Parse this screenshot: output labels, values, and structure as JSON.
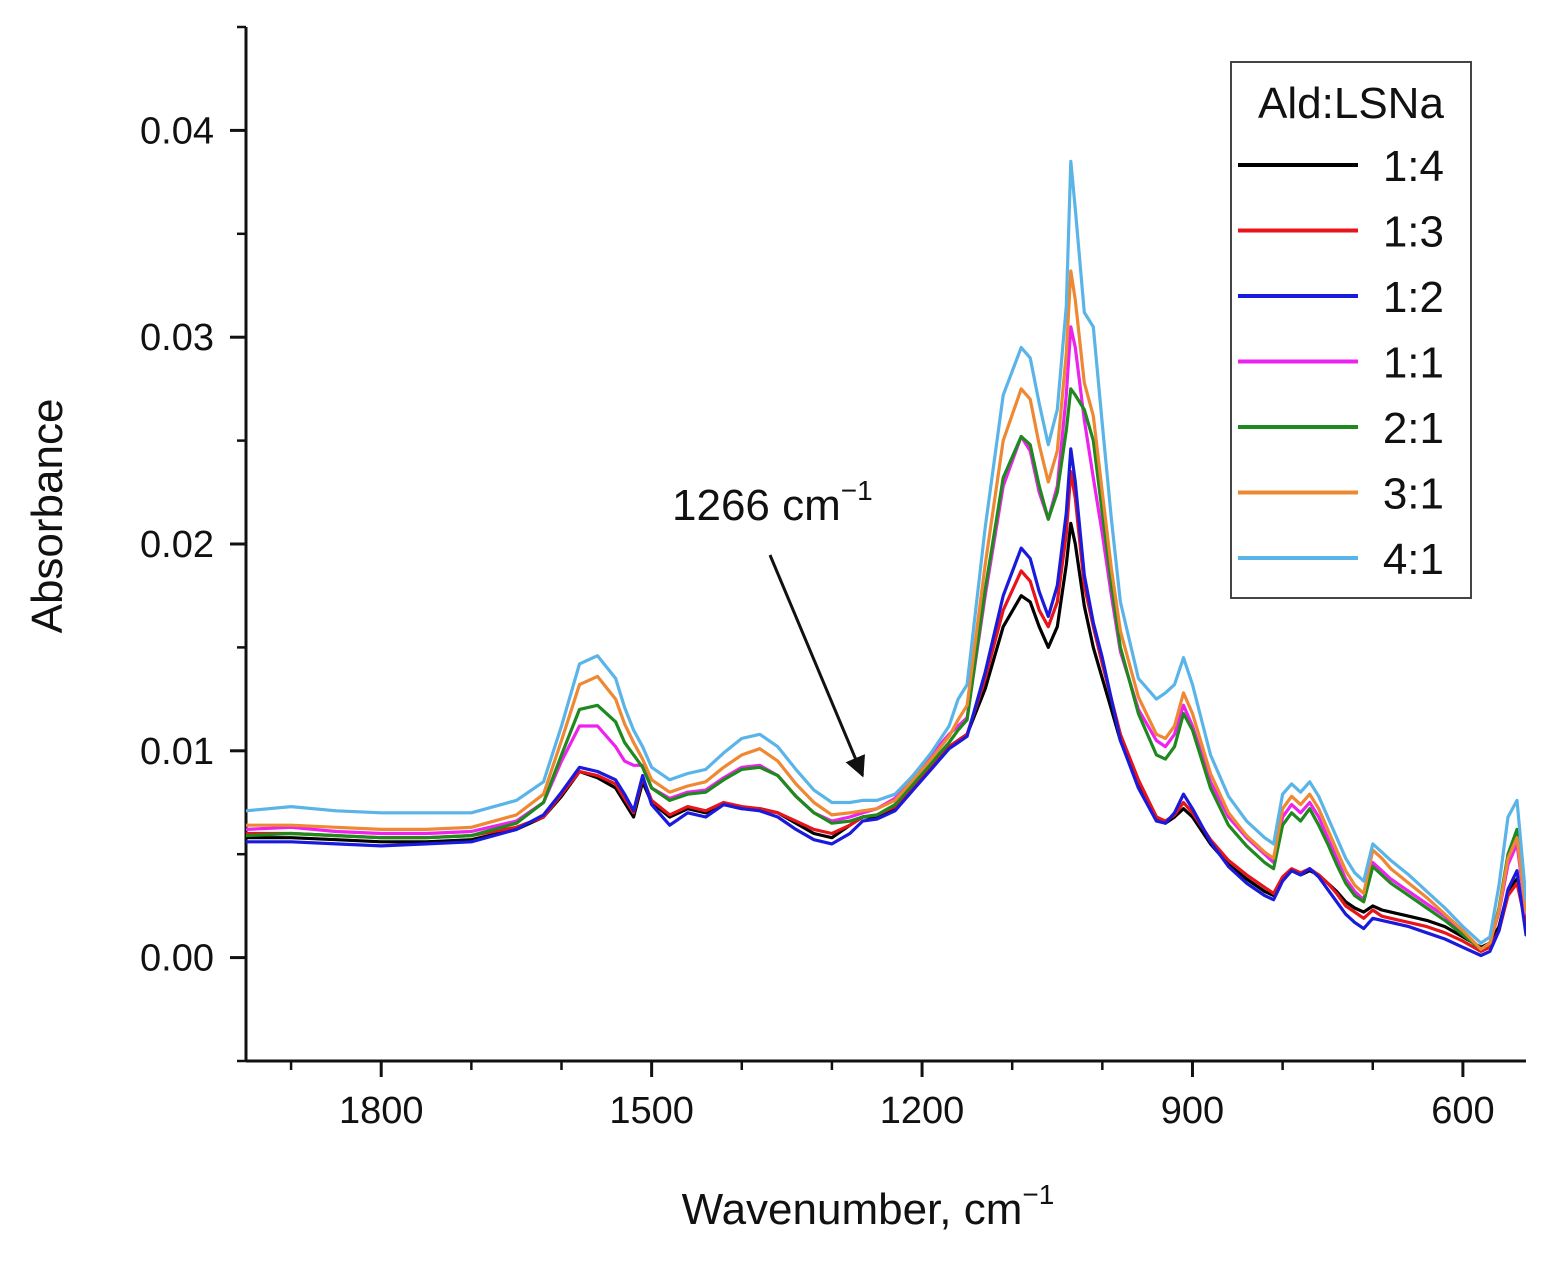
{
  "chart_data": {
    "type": "line",
    "title": "",
    "xlabel": "Wavenumber, cm",
    "xlabel_sup": "−1",
    "ylabel": "Absorbance",
    "xlim": [
      1950,
      530
    ],
    "ylim": [
      -0.005,
      0.045
    ],
    "x_reversed": true,
    "x_ticks": [
      1800,
      1500,
      1200,
      900,
      600
    ],
    "x_tick_labels": [
      "1800",
      "1500",
      "1200",
      "900",
      "600"
    ],
    "y_ticks": [
      0.0,
      0.01,
      0.02,
      0.03,
      0.04
    ],
    "y_tick_labels": [
      "0.00",
      "0.01",
      "0.02",
      "0.03",
      "0.04"
    ],
    "grid": false,
    "legend": {
      "title": "Ald:LSNa",
      "placement": "top-right"
    },
    "annotation": {
      "text": "1266 cm",
      "sup": "−1",
      "target_x": 1266,
      "target_y": 0.0088
    },
    "x": [
      1950,
      1900,
      1850,
      1800,
      1750,
      1700,
      1650,
      1620,
      1600,
      1580,
      1560,
      1540,
      1530,
      1520,
      1510,
      1500,
      1480,
      1460,
      1440,
      1420,
      1400,
      1380,
      1360,
      1340,
      1320,
      1300,
      1280,
      1266,
      1250,
      1230,
      1210,
      1190,
      1170,
      1160,
      1150,
      1130,
      1110,
      1090,
      1080,
      1070,
      1060,
      1050,
      1040,
      1035,
      1030,
      1020,
      1010,
      1000,
      990,
      980,
      960,
      940,
      930,
      920,
      910,
      900,
      880,
      860,
      840,
      820,
      810,
      800,
      790,
      780,
      770,
      760,
      750,
      740,
      730,
      720,
      710,
      700,
      690,
      680,
      660,
      640,
      620,
      600,
      580,
      570,
      560,
      550,
      540,
      530
    ],
    "series": [
      {
        "name": "1:4",
        "color": "#000000",
        "values": [
          0.0058,
          0.0058,
          0.0057,
          0.0056,
          0.0056,
          0.0057,
          0.0062,
          0.0068,
          0.0078,
          0.009,
          0.0087,
          0.0082,
          0.0075,
          0.0068,
          0.0085,
          0.0075,
          0.0068,
          0.0072,
          0.007,
          0.0074,
          0.0072,
          0.0072,
          0.007,
          0.0065,
          0.006,
          0.0058,
          0.0064,
          0.0068,
          0.0068,
          0.0072,
          0.0082,
          0.0092,
          0.0102,
          0.0105,
          0.0108,
          0.013,
          0.016,
          0.0175,
          0.0172,
          0.016,
          0.015,
          0.016,
          0.019,
          0.021,
          0.02,
          0.017,
          0.015,
          0.0135,
          0.012,
          0.0105,
          0.0085,
          0.0068,
          0.0065,
          0.0068,
          0.0072,
          0.0068,
          0.0055,
          0.0045,
          0.0038,
          0.0032,
          0.003,
          0.0038,
          0.0042,
          0.004,
          0.0042,
          0.004,
          0.0036,
          0.0032,
          0.0027,
          0.0024,
          0.0022,
          0.0025,
          0.0023,
          0.0022,
          0.002,
          0.0018,
          0.0015,
          0.001,
          0.0005,
          0.0007,
          0.0015,
          0.0032,
          0.0038,
          0.0018
        ]
      },
      {
        "name": "1:3",
        "color": "#e8141a",
        "values": [
          0.006,
          0.006,
          0.0059,
          0.0058,
          0.0058,
          0.0059,
          0.0063,
          0.0068,
          0.0079,
          0.009,
          0.0088,
          0.0084,
          0.0077,
          0.007,
          0.0087,
          0.0076,
          0.0069,
          0.0073,
          0.0071,
          0.0075,
          0.0073,
          0.0072,
          0.007,
          0.0066,
          0.0062,
          0.006,
          0.0064,
          0.0068,
          0.0069,
          0.0073,
          0.0082,
          0.0092,
          0.0102,
          0.0105,
          0.0108,
          0.0135,
          0.0168,
          0.0187,
          0.0182,
          0.0168,
          0.016,
          0.0172,
          0.0205,
          0.0235,
          0.0222,
          0.018,
          0.016,
          0.0142,
          0.0125,
          0.0108,
          0.0086,
          0.0068,
          0.0066,
          0.0069,
          0.0075,
          0.007,
          0.0057,
          0.0047,
          0.004,
          0.0034,
          0.0031,
          0.0039,
          0.0043,
          0.0041,
          0.0043,
          0.004,
          0.0036,
          0.0031,
          0.0025,
          0.0022,
          0.0019,
          0.0023,
          0.002,
          0.0019,
          0.0017,
          0.0015,
          0.0012,
          0.0008,
          0.0003,
          0.0005,
          0.0013,
          0.003,
          0.0036,
          0.0016
        ]
      },
      {
        "name": "1:2",
        "color": "#1a1adc",
        "values": [
          0.0056,
          0.0056,
          0.0055,
          0.0054,
          0.0055,
          0.0056,
          0.0062,
          0.0069,
          0.008,
          0.0092,
          0.009,
          0.0086,
          0.0079,
          0.0071,
          0.0088,
          0.0074,
          0.0064,
          0.007,
          0.0068,
          0.0074,
          0.0072,
          0.0071,
          0.0068,
          0.0062,
          0.0057,
          0.0055,
          0.006,
          0.0066,
          0.0067,
          0.0071,
          0.0081,
          0.0091,
          0.0101,
          0.0104,
          0.0107,
          0.0138,
          0.0175,
          0.0198,
          0.0193,
          0.0177,
          0.0165,
          0.018,
          0.0215,
          0.0246,
          0.023,
          0.0185,
          0.0162,
          0.0145,
          0.0125,
          0.0105,
          0.0082,
          0.0066,
          0.0065,
          0.007,
          0.0079,
          0.0072,
          0.0056,
          0.0044,
          0.0036,
          0.003,
          0.0028,
          0.0037,
          0.0042,
          0.004,
          0.0043,
          0.0039,
          0.0033,
          0.0027,
          0.0021,
          0.0017,
          0.0014,
          0.0019,
          0.0018,
          0.0017,
          0.0015,
          0.0012,
          0.0009,
          0.0005,
          0.0001,
          0.0003,
          0.0013,
          0.0033,
          0.0042,
          0.0011
        ]
      },
      {
        "name": "1:1",
        "color": "#ee22ee",
        "values": [
          0.0062,
          0.0063,
          0.0061,
          0.006,
          0.006,
          0.0061,
          0.0066,
          0.0075,
          0.0095,
          0.0112,
          0.0112,
          0.0102,
          0.0095,
          0.0093,
          0.0093,
          0.0082,
          0.0077,
          0.008,
          0.0081,
          0.0087,
          0.0092,
          0.0093,
          0.0088,
          0.0078,
          0.007,
          0.0066,
          0.0068,
          0.007,
          0.0072,
          0.0077,
          0.0088,
          0.0098,
          0.0108,
          0.0112,
          0.0116,
          0.0175,
          0.0228,
          0.0252,
          0.0245,
          0.0225,
          0.0212,
          0.0228,
          0.0272,
          0.0305,
          0.0295,
          0.026,
          0.0232,
          0.0205,
          0.0175,
          0.0148,
          0.012,
          0.0105,
          0.0102,
          0.0108,
          0.0122,
          0.0112,
          0.0085,
          0.0068,
          0.0058,
          0.005,
          0.0046,
          0.0068,
          0.0074,
          0.007,
          0.0075,
          0.0068,
          0.0058,
          0.0048,
          0.0038,
          0.0032,
          0.0028,
          0.0046,
          0.0042,
          0.0038,
          0.0032,
          0.0026,
          0.002,
          0.0012,
          0.0004,
          0.0007,
          0.0022,
          0.0045,
          0.0055,
          0.0021
        ]
      },
      {
        "name": "2:1",
        "color": "#1e8a1e",
        "values": [
          0.0059,
          0.006,
          0.0059,
          0.0058,
          0.0058,
          0.0059,
          0.0065,
          0.0075,
          0.0098,
          0.012,
          0.0122,
          0.0114,
          0.0104,
          0.0098,
          0.0092,
          0.0082,
          0.0076,
          0.0079,
          0.008,
          0.0086,
          0.0091,
          0.0092,
          0.0088,
          0.0078,
          0.007,
          0.0065,
          0.0066,
          0.0068,
          0.0069,
          0.0074,
          0.0084,
          0.0094,
          0.0104,
          0.011,
          0.0115,
          0.0178,
          0.0232,
          0.0252,
          0.0248,
          0.0228,
          0.0212,
          0.0225,
          0.0255,
          0.0275,
          0.0272,
          0.0265,
          0.025,
          0.0215,
          0.018,
          0.015,
          0.0118,
          0.0098,
          0.0096,
          0.0102,
          0.0118,
          0.011,
          0.0082,
          0.0064,
          0.0054,
          0.0046,
          0.0043,
          0.0064,
          0.007,
          0.0066,
          0.0072,
          0.0064,
          0.0055,
          0.0045,
          0.0036,
          0.003,
          0.0027,
          0.0044,
          0.004,
          0.0036,
          0.003,
          0.0024,
          0.0018,
          0.0011,
          0.0004,
          0.0007,
          0.0024,
          0.005,
          0.0062,
          0.0023
        ]
      },
      {
        "name": "3:1",
        "color": "#ee8833",
        "values": [
          0.0064,
          0.0064,
          0.0063,
          0.0062,
          0.0062,
          0.0063,
          0.0069,
          0.0079,
          0.0105,
          0.0132,
          0.0136,
          0.0125,
          0.0113,
          0.0104,
          0.0096,
          0.0086,
          0.008,
          0.0083,
          0.0085,
          0.0092,
          0.0098,
          0.0101,
          0.0095,
          0.0084,
          0.0075,
          0.0069,
          0.007,
          0.0071,
          0.0072,
          0.0076,
          0.0086,
          0.0096,
          0.0107,
          0.0115,
          0.0122,
          0.019,
          0.025,
          0.0275,
          0.027,
          0.0248,
          0.023,
          0.0245,
          0.0292,
          0.0332,
          0.0318,
          0.0278,
          0.0262,
          0.0225,
          0.0188,
          0.0158,
          0.0126,
          0.0108,
          0.0106,
          0.0112,
          0.0128,
          0.0118,
          0.0089,
          0.007,
          0.0059,
          0.0051,
          0.0048,
          0.0072,
          0.0078,
          0.0074,
          0.0079,
          0.0072,
          0.0062,
          0.0052,
          0.0042,
          0.0035,
          0.0031,
          0.0052,
          0.0048,
          0.0043,
          0.0036,
          0.0029,
          0.0021,
          0.0013,
          0.0004,
          0.0007,
          0.0023,
          0.0048,
          0.0058,
          0.0022
        ]
      },
      {
        "name": "4:1",
        "color": "#5ab4e8",
        "values": [
          0.0071,
          0.0073,
          0.0071,
          0.007,
          0.007,
          0.007,
          0.0076,
          0.0085,
          0.0112,
          0.0142,
          0.0146,
          0.0135,
          0.0121,
          0.011,
          0.0102,
          0.0092,
          0.0086,
          0.0089,
          0.0091,
          0.0099,
          0.0106,
          0.0108,
          0.0102,
          0.0091,
          0.0081,
          0.0075,
          0.0075,
          0.0076,
          0.0076,
          0.0079,
          0.0088,
          0.0099,
          0.0112,
          0.0125,
          0.0132,
          0.0208,
          0.0272,
          0.0295,
          0.029,
          0.0268,
          0.0248,
          0.0265,
          0.0315,
          0.0385,
          0.0362,
          0.0312,
          0.0305,
          0.0258,
          0.0212,
          0.0172,
          0.0135,
          0.0125,
          0.0128,
          0.0132,
          0.0145,
          0.0132,
          0.0098,
          0.0078,
          0.0066,
          0.0058,
          0.0055,
          0.0079,
          0.0084,
          0.008,
          0.0085,
          0.0078,
          0.0068,
          0.0058,
          0.0048,
          0.0041,
          0.0037,
          0.0055,
          0.0051,
          0.0047,
          0.004,
          0.0032,
          0.0024,
          0.0015,
          0.0007,
          0.001,
          0.0035,
          0.0068,
          0.0076,
          0.0028
        ]
      }
    ]
  }
}
